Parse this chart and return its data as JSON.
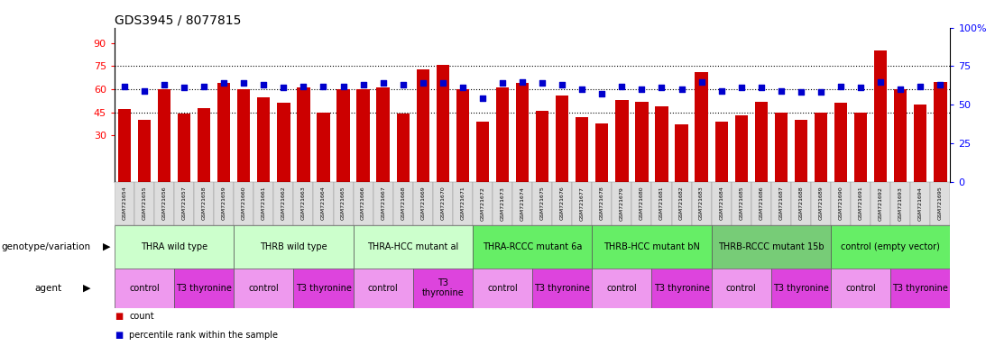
{
  "title": "GDS3945 / 8077815",
  "samples": [
    "GSM721654",
    "GSM721655",
    "GSM721656",
    "GSM721657",
    "GSM721658",
    "GSM721659",
    "GSM721660",
    "GSM721661",
    "GSM721662",
    "GSM721663",
    "GSM721664",
    "GSM721665",
    "GSM721666",
    "GSM721667",
    "GSM721668",
    "GSM721669",
    "GSM721670",
    "GSM721671",
    "GSM721672",
    "GSM721673",
    "GSM721674",
    "GSM721675",
    "GSM721676",
    "GSM721677",
    "GSM721678",
    "GSM721679",
    "GSM721680",
    "GSM721681",
    "GSM721682",
    "GSM721683",
    "GSM721684",
    "GSM721685",
    "GSM721686",
    "GSM721687",
    "GSM721688",
    "GSM721689",
    "GSM721690",
    "GSM721691",
    "GSM721692",
    "GSM721693",
    "GSM721694",
    "GSM721695"
  ],
  "counts": [
    47,
    40,
    60,
    44,
    48,
    64,
    60,
    55,
    51,
    61,
    45,
    60,
    60,
    61,
    44,
    73,
    76,
    60,
    39,
    61,
    64,
    46,
    56,
    42,
    38,
    53,
    52,
    49,
    37,
    71,
    39,
    43,
    52,
    45,
    40,
    45,
    51,
    45,
    85,
    60,
    50,
    65
  ],
  "percentile_ranks": [
    62,
    59,
    63,
    61,
    62,
    64,
    64,
    63,
    61,
    62,
    62,
    62,
    63,
    64,
    63,
    64,
    64,
    61,
    54,
    64,
    65,
    64,
    63,
    60,
    57,
    62,
    60,
    61,
    60,
    65,
    59,
    61,
    61,
    59,
    58,
    58,
    62,
    61,
    65,
    60,
    62,
    63
  ],
  "bar_color": "#cc0000",
  "dot_color": "#0000cc",
  "ylim": [
    0,
    100
  ],
  "left_yticks": [
    30,
    45,
    60,
    75,
    90
  ],
  "left_ytick_labels": [
    "30",
    "45",
    "60",
    "75",
    "90"
  ],
  "right_yticks": [
    0,
    25,
    50,
    75,
    100
  ],
  "right_ytick_labels": [
    "0",
    "25",
    "50",
    "75",
    "100%"
  ],
  "dotted_lines": [
    45,
    60,
    75
  ],
  "genotype_groups": [
    {
      "label": "THRA wild type",
      "start": 0,
      "end": 5,
      "color": "#ccffcc"
    },
    {
      "label": "THRB wild type",
      "start": 6,
      "end": 11,
      "color": "#ccffcc"
    },
    {
      "label": "THRA-HCC mutant al",
      "start": 12,
      "end": 17,
      "color": "#ccffcc"
    },
    {
      "label": "THRA-RCCC mutant 6a",
      "start": 18,
      "end": 23,
      "color": "#66ee66"
    },
    {
      "label": "THRB-HCC mutant bN",
      "start": 24,
      "end": 29,
      "color": "#66ee66"
    },
    {
      "label": "THRB-RCCC mutant 15b",
      "start": 30,
      "end": 35,
      "color": "#77cc77"
    },
    {
      "label": "control (empty vector)",
      "start": 36,
      "end": 41,
      "color": "#66ee66"
    }
  ],
  "agent_groups": [
    {
      "label": "control",
      "start": 0,
      "end": 2,
      "color": "#ee99ee"
    },
    {
      "label": "T3 thyronine",
      "start": 3,
      "end": 5,
      "color": "#dd44dd"
    },
    {
      "label": "control",
      "start": 6,
      "end": 8,
      "color": "#ee99ee"
    },
    {
      "label": "T3 thyronine",
      "start": 9,
      "end": 11,
      "color": "#dd44dd"
    },
    {
      "label": "control",
      "start": 12,
      "end": 14,
      "color": "#ee99ee"
    },
    {
      "label": "T3\nthyronine",
      "start": 15,
      "end": 17,
      "color": "#dd44dd"
    },
    {
      "label": "control",
      "start": 18,
      "end": 20,
      "color": "#ee99ee"
    },
    {
      "label": "T3 thyronine",
      "start": 21,
      "end": 23,
      "color": "#dd44dd"
    },
    {
      "label": "control",
      "start": 24,
      "end": 26,
      "color": "#ee99ee"
    },
    {
      "label": "T3 thyronine",
      "start": 27,
      "end": 29,
      "color": "#dd44dd"
    },
    {
      "label": "control",
      "start": 30,
      "end": 32,
      "color": "#ee99ee"
    },
    {
      "label": "T3 thyronine",
      "start": 33,
      "end": 35,
      "color": "#dd44dd"
    },
    {
      "label": "control",
      "start": 36,
      "end": 38,
      "color": "#ee99ee"
    },
    {
      "label": "T3 thyronine",
      "start": 39,
      "end": 41,
      "color": "#dd44dd"
    }
  ],
  "background_color": "#ffffff",
  "title_fontsize": 10,
  "sample_fontsize": 4.5,
  "annotation_fontsize": 7.0
}
